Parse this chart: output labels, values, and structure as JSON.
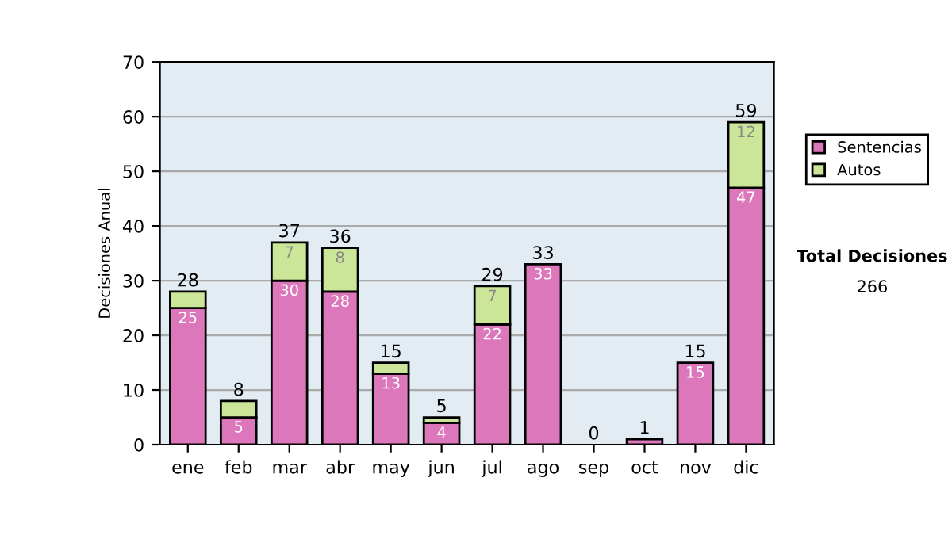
{
  "chart_data": {
    "type": "bar",
    "stacked": true,
    "ylabel": "Decisiones Anual",
    "categories": [
      "ene",
      "feb",
      "mar",
      "abr",
      "may",
      "jun",
      "jul",
      "ago",
      "sep",
      "oct",
      "nov",
      "dic"
    ],
    "series": [
      {
        "name": "Sentencias",
        "color": "#dd77bb",
        "values": [
          25,
          5,
          30,
          28,
          13,
          4,
          22,
          33,
          0,
          1,
          15,
          47
        ],
        "value_labels": [
          "25",
          "5",
          "30",
          "28",
          "13",
          "4",
          "22",
          "33",
          null,
          null,
          "15",
          "47"
        ]
      },
      {
        "name": "Autos",
        "color": "#cce699",
        "values": [
          3,
          3,
          7,
          8,
          2,
          1,
          7,
          0,
          0,
          0,
          0,
          12
        ],
        "value_labels": [
          null,
          null,
          "7",
          "8",
          null,
          null,
          "7",
          null,
          null,
          null,
          null,
          "12"
        ]
      }
    ],
    "totals": [
      "28",
      "8",
      "37",
      "36",
      "15",
      "5",
      "29",
      "33",
      "0",
      "1",
      "15",
      "59"
    ],
    "ylim": [
      0,
      70
    ],
    "yticks": [
      0,
      10,
      20,
      30,
      40,
      50,
      60,
      70
    ],
    "grid": "y",
    "legend": "right",
    "annotations": [
      "Total Decisiones",
      "266"
    ]
  }
}
